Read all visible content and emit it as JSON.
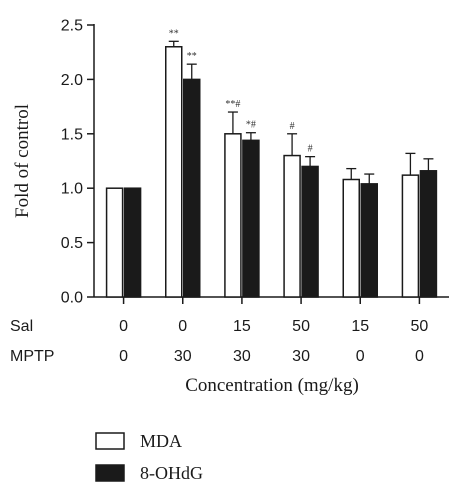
{
  "chart_data": {
    "type": "bar",
    "ylabel": "Fold of control",
    "xlabel": "Concentration (mg/kg)",
    "ylim": [
      0,
      2.5
    ],
    "yticks": [
      "0.0",
      "0.5",
      "1.0",
      "1.5",
      "2.0",
      "2.5"
    ],
    "row_labels": [
      {
        "name": "Sal",
        "values": [
          "0",
          "0",
          "15",
          "50",
          "15",
          "50"
        ]
      },
      {
        "name": "MPTP",
        "values": [
          "0",
          "30",
          "30",
          "30",
          "0",
          "0"
        ]
      }
    ],
    "series": [
      {
        "name": "MDA",
        "color": "#ffffff",
        "values": [
          1.0,
          2.3,
          1.5,
          1.3,
          1.08,
          1.12
        ],
        "errors": [
          0.0,
          0.05,
          0.2,
          0.2,
          0.1,
          0.2
        ],
        "annotations": [
          "",
          "**",
          "**#",
          "#",
          "",
          ""
        ]
      },
      {
        "name": "8-OHdG",
        "color": "#1a1a1a",
        "values": [
          1.0,
          2.0,
          1.44,
          1.2,
          1.04,
          1.16
        ],
        "errors": [
          0.0,
          0.14,
          0.07,
          0.09,
          0.09,
          0.11
        ],
        "annotations": [
          "",
          "**",
          "*#",
          "#",
          "",
          ""
        ]
      }
    ],
    "legend_position": "bottom-left",
    "grid": false
  }
}
